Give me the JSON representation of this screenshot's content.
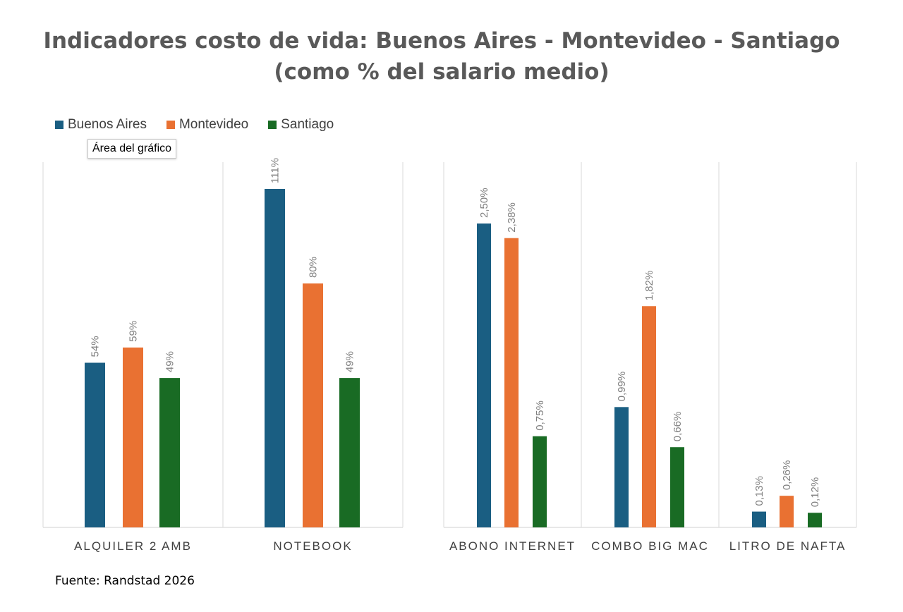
{
  "title": {
    "line1": "Indicadores costo de vida: Buenos Aires - Montevideo - Santiago",
    "line2": "(como % del salario medio)"
  },
  "tooltip": "Área del gráfico",
  "source": "Fuente: Randstad 2026",
  "legend": [
    {
      "name": "Buenos Aires",
      "color": "#1a5e82"
    },
    {
      "name": "Montevideo",
      "color": "#e97132"
    },
    {
      "name": "Santiago",
      "color": "#196b24"
    }
  ],
  "chart_data": [
    {
      "type": "bar",
      "categories": [
        "ALQUILER 2 AMB",
        "NOTEBOOK"
      ],
      "series": [
        {
          "name": "Buenos Aires",
          "color": "#1a5e82",
          "values": [
            54,
            111
          ],
          "labels": [
            "54%",
            "111%"
          ]
        },
        {
          "name": "Montevideo",
          "color": "#e97132",
          "values": [
            59,
            80
          ],
          "labels": [
            "59%",
            "80%"
          ]
        },
        {
          "name": "Santiago",
          "color": "#196b24",
          "values": [
            49,
            49
          ],
          "labels": [
            "49%",
            "49%"
          ]
        }
      ],
      "ylim": [
        0,
        120
      ],
      "grid": false
    },
    {
      "type": "bar",
      "categories": [
        "ABONO INTERNET",
        "COMBO BIG MAC",
        "LITRO DE NAFTA"
      ],
      "series": [
        {
          "name": "Buenos Aires",
          "color": "#1a5e82",
          "values": [
            2.5,
            0.99,
            0.13
          ],
          "labels": [
            "2,50%",
            "0,99%",
            "0,13%"
          ]
        },
        {
          "name": "Montevideo",
          "color": "#e97132",
          "values": [
            2.38,
            1.82,
            0.26
          ],
          "labels": [
            "2,38%",
            "1,82%",
            "0,26%"
          ]
        },
        {
          "name": "Santiago",
          "color": "#196b24",
          "values": [
            0.75,
            0.66,
            0.12
          ],
          "labels": [
            "0,75%",
            "0,66%",
            "0,12%"
          ]
        }
      ],
      "ylim": [
        0,
        2.8
      ],
      "grid": false
    }
  ]
}
